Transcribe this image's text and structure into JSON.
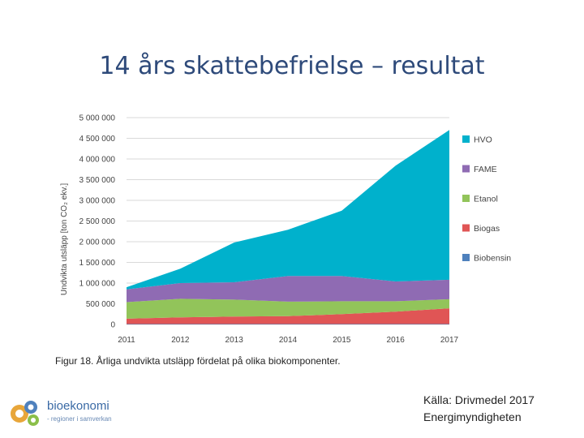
{
  "slide": {
    "title": "14 års skattebefrielse – resultat",
    "caption": "Figur 18. Årliga undvikta utsläpp fördelat på olika biokomponenter.",
    "source_line1": "Källa:  Drivmedel 2017",
    "source_line2": "Energimyndigheten",
    "logo_name": "bioekonomi",
    "logo_sub": "- regioner i samverkan"
  },
  "chart_data": {
    "type": "area",
    "stacked": true,
    "ylabel": "Undvikta utsläpp [ton CO₂ ekv.]",
    "xlabel": "",
    "x": [
      2011,
      2012,
      2013,
      2014,
      2015,
      2016,
      2017
    ],
    "ylim": [
      0,
      5000000
    ],
    "yticks": [
      0,
      500000,
      1000000,
      1500000,
      2000000,
      2500000,
      3000000,
      3500000,
      4000000,
      4500000,
      5000000
    ],
    "ytick_labels": [
      "0",
      "500 000",
      "1 000 000",
      "1 500 000",
      "2 000 000",
      "2 500 000",
      "3 000 000",
      "3 500 000",
      "4 000 000",
      "4 500 000",
      "5 000 000"
    ],
    "grid": true,
    "legend_position": "right",
    "series": [
      {
        "name": "Biobensin",
        "color": "#4f81bd",
        "values": [
          10000,
          10000,
          10000,
          10000,
          10000,
          10000,
          10000
        ]
      },
      {
        "name": "Biogas",
        "color": "#e05555",
        "values": [
          130000,
          160000,
          180000,
          190000,
          240000,
          300000,
          380000
        ]
      },
      {
        "name": "Etanol",
        "color": "#92c45a",
        "values": [
          400000,
          450000,
          410000,
          350000,
          310000,
          250000,
          220000
        ]
      },
      {
        "name": "FAME",
        "color": "#8f6bb3",
        "values": [
          310000,
          380000,
          420000,
          620000,
          610000,
          480000,
          470000
        ]
      },
      {
        "name": "HVO",
        "color": "#00b1cc",
        "values": [
          50000,
          350000,
          960000,
          1120000,
          1580000,
          2800000,
          3620000
        ]
      }
    ]
  }
}
